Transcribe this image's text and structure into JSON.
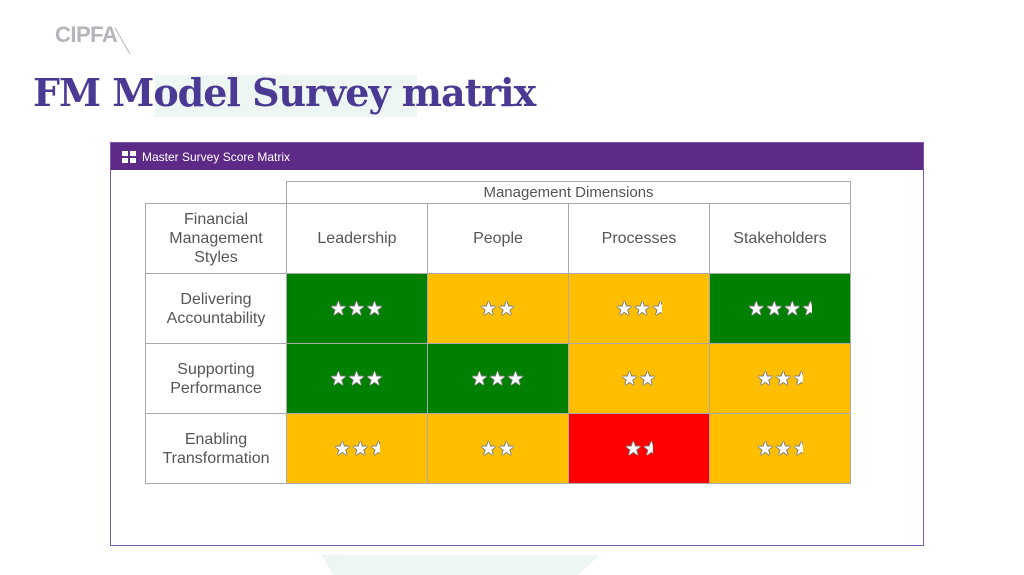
{
  "header": {
    "logo": "CIPFA",
    "title": "FM Model Survey matrix"
  },
  "window": {
    "title": "Master Survey Score Matrix"
  },
  "matrix": {
    "group_header": "Management Dimensions",
    "corner_label": "Financial Management Styles",
    "columns": [
      "Leadership",
      "People",
      "Processes",
      "Stakeholders"
    ],
    "rows": [
      {
        "label": "Delivering Accountability",
        "cells": [
          {
            "rating": 3,
            "color": "#008000"
          },
          {
            "rating": 2,
            "color": "#ffbf00"
          },
          {
            "rating": 2.5,
            "color": "#ffbf00"
          },
          {
            "rating": 3.5,
            "color": "#008000"
          }
        ]
      },
      {
        "label": "Supporting Performance",
        "cells": [
          {
            "rating": 3,
            "color": "#008000"
          },
          {
            "rating": 3,
            "color": "#008000"
          },
          {
            "rating": 2,
            "color": "#ffbf00"
          },
          {
            "rating": 2.5,
            "color": "#ffbf00"
          }
        ]
      },
      {
        "label": "Enabling Transformation",
        "cells": [
          {
            "rating": 2.5,
            "color": "#ffbf00"
          },
          {
            "rating": 2,
            "color": "#ffbf00"
          },
          {
            "rating": 1.5,
            "color": "#ff0000"
          },
          {
            "rating": 2.5,
            "color": "#ffbf00"
          }
        ]
      }
    ]
  }
}
